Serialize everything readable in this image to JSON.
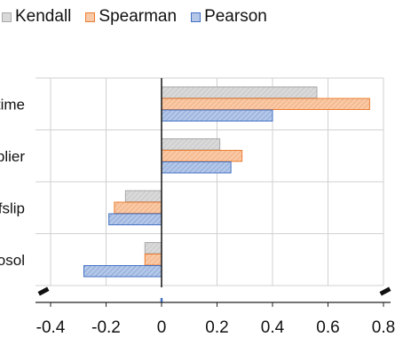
{
  "chart_data": {
    "type": "bar",
    "orientation": "horizontal",
    "categories": [
      "_time",
      "plier",
      "_fslip",
      "rosol"
    ],
    "series": [
      {
        "name": "Kendall",
        "values": [
          0.56,
          0.21,
          -0.13,
          -0.06
        ],
        "color": "#a8a8a8",
        "fill": "#d9d9d9"
      },
      {
        "name": "Spearman",
        "values": [
          0.75,
          0.29,
          -0.17,
          -0.06
        ],
        "color": "#ed7d31",
        "fill": "#f8c9a7"
      },
      {
        "name": "Pearson",
        "values": [
          0.4,
          0.25,
          -0.19,
          -0.28
        ],
        "color": "#4472c4",
        "fill": "#b4c7e7"
      }
    ],
    "x_ticks": [
      "-0.4",
      "-0.2",
      "0",
      "0.2",
      "0.4",
      "0.6",
      "0.8"
    ],
    "x_tick_values": [
      -0.4,
      -0.2,
      0,
      0.2,
      0.4,
      0.6,
      0.8
    ],
    "xlim": [
      -0.4,
      0.8
    ],
    "grid": true,
    "legend_position": "top",
    "axis_break": true,
    "title": "",
    "xlabel": "",
    "ylabel": ""
  }
}
